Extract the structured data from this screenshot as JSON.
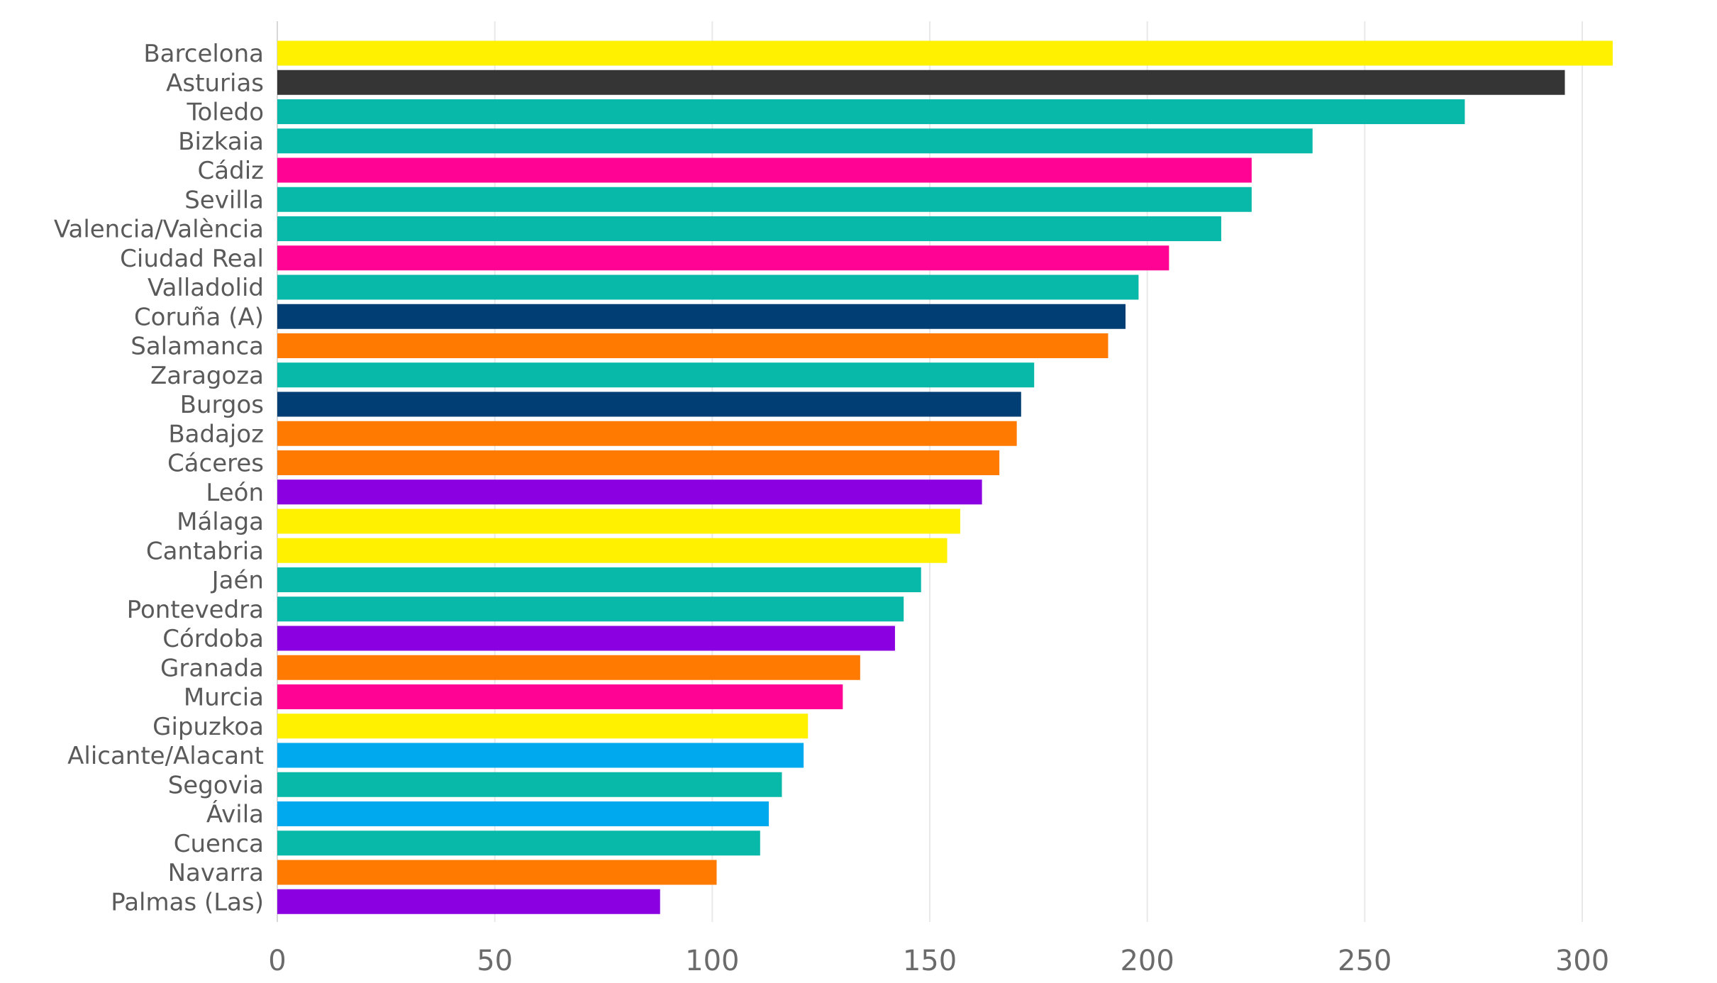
{
  "chart_data": {
    "type": "bar",
    "orientation": "horizontal",
    "title": "",
    "xlabel": "",
    "ylabel": "",
    "xlim": [
      0,
      300
    ],
    "xticks": [
      0,
      50,
      100,
      150,
      200,
      250,
      300
    ],
    "grid": true,
    "legend": "none",
    "categories": [
      "Barcelona",
      "Asturias",
      "Toledo",
      "Bizkaia",
      "Cádiz",
      "Sevilla",
      "Valencia/València",
      "Ciudad Real",
      "Valladolid",
      "Coruña (A)",
      "Salamanca",
      "Zaragoza",
      "Burgos",
      "Badajoz",
      "Cáceres",
      "León",
      "Málaga",
      "Cantabria",
      "Jaén",
      "Pontevedra",
      "Córdoba",
      "Granada",
      "Murcia",
      "Gipuzkoa",
      "Alicante/Alacant",
      "Segovia",
      "Ávila",
      "Cuenca",
      "Navarra",
      "Palmas (Las)"
    ],
    "values": [
      307,
      296,
      273,
      238,
      224,
      224,
      217,
      205,
      198,
      195,
      191,
      174,
      171,
      170,
      166,
      162,
      157,
      154,
      148,
      144,
      142,
      134,
      130,
      122,
      121,
      116,
      113,
      111,
      101,
      88
    ],
    "colors": [
      "#FFF100",
      "#353535",
      "#08B8A8",
      "#08B8A8",
      "#FF0494",
      "#08B8A8",
      "#08B8A8",
      "#FF0494",
      "#08B8A8",
      "#003E73",
      "#FF7A00",
      "#08B8A8",
      "#003E73",
      "#FF7A00",
      "#FF7A00",
      "#8A00E0",
      "#FFF100",
      "#FFF100",
      "#08B8A8",
      "#08B8A8",
      "#8A00E0",
      "#FF7A00",
      "#FF0494",
      "#FFF100",
      "#00A8EE",
      "#08B8A8",
      "#00A8EE",
      "#08B8A8",
      "#FF7A00",
      "#8A00E0"
    ]
  }
}
